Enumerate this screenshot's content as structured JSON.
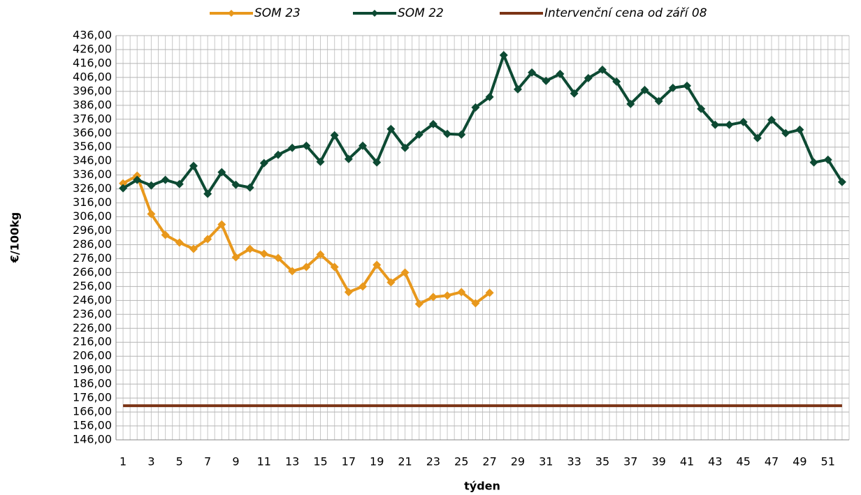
{
  "chart_data": {
    "type": "line",
    "xlabel": "týden",
    "ylabel": "€/100kg",
    "categories": [
      "1",
      null,
      "3",
      null,
      "5",
      null,
      "7",
      null,
      "9",
      null,
      "11",
      null,
      "13",
      null,
      "15",
      null,
      "17",
      null,
      "19",
      null,
      "21",
      null,
      "23",
      null,
      "25",
      null,
      "27",
      null,
      "29",
      null,
      "31",
      null,
      "33",
      null,
      "35",
      null,
      "37",
      null,
      "39",
      null,
      "41",
      null,
      "43",
      null,
      "45",
      null,
      "47",
      null,
      "49",
      null,
      "51",
      null
    ],
    "series": [
      {
        "name": "SOM 23",
        "color": "#e8981c",
        "marker": true,
        "values": [
          330,
          335.5,
          308,
          293,
          287.5,
          283,
          290,
          300.5,
          277,
          283,
          279.5,
          276.5,
          267,
          270,
          279,
          270,
          252,
          256,
          271.5,
          259,
          266,
          243.5,
          248.5,
          249.5,
          252,
          244,
          251.5,
          null,
          null,
          null,
          null,
          null,
          null,
          null,
          null,
          null,
          null,
          null,
          null,
          null,
          null,
          null,
          null,
          null,
          null,
          null,
          null,
          null,
          null,
          null,
          null,
          null
        ]
      },
      {
        "name": "SOM 22",
        "color": "#0d4a33",
        "marker": true,
        "values": [
          326.5,
          332.5,
          328.5,
          332.5,
          329.5,
          342.5,
          322.5,
          338,
          329,
          327,
          344.5,
          350.5,
          355.5,
          357,
          345.5,
          364.5,
          347.5,
          357,
          345,
          369,
          355.5,
          365,
          372.5,
          365.5,
          365,
          384.5,
          392,
          422,
          397.5,
          409.5,
          403.5,
          408.5,
          394.5,
          405.5,
          411.5,
          403,
          387,
          397,
          389,
          398.5,
          400,
          383.5,
          372,
          372,
          374,
          362.5,
          375.5,
          366,
          368.5,
          345,
          347,
          331
        ]
      },
      {
        "name": "Intervenční cena od září 08",
        "color": "#7b3416",
        "marker": false,
        "values": [
          170.5,
          170.5,
          170.5,
          170.5,
          170.5,
          170.5,
          170.5,
          170.5,
          170.5,
          170.5,
          170.5,
          170.5,
          170.5,
          170.5,
          170.5,
          170.5,
          170.5,
          170.5,
          170.5,
          170.5,
          170.5,
          170.5,
          170.5,
          170.5,
          170.5,
          170.5,
          170.5,
          170.5,
          170.5,
          170.5,
          170.5,
          170.5,
          170.5,
          170.5,
          170.5,
          170.5,
          170.5,
          170.5,
          170.5,
          170.5,
          170.5,
          170.5,
          170.5,
          170.5,
          170.5,
          170.5,
          170.5,
          170.5,
          170.5,
          170.5,
          170.5,
          170.5
        ]
      }
    ],
    "ylim": [
      146,
      436
    ],
    "yticks": [
      {
        "value": 146,
        "label": "146,00"
      },
      {
        "value": 156,
        "label": "156,00"
      },
      {
        "value": 166,
        "label": "166,00"
      },
      {
        "value": 176,
        "label": "176,00"
      },
      {
        "value": 186,
        "label": "186,00"
      },
      {
        "value": 196,
        "label": "196,00"
      },
      {
        "value": 206,
        "label": "206,00"
      },
      {
        "value": 216,
        "label": "216,00"
      },
      {
        "value": 226,
        "label": "226,00"
      },
      {
        "value": 236,
        "label": "236,00"
      },
      {
        "value": 246,
        "label": "246,00"
      },
      {
        "value": 256,
        "label": "256,00"
      },
      {
        "value": 266,
        "label": "266,00"
      },
      {
        "value": 276,
        "label": "276,00"
      },
      {
        "value": 286,
        "label": "286,00"
      },
      {
        "value": 296,
        "label": "296,00"
      },
      {
        "value": 306,
        "label": "306,00"
      },
      {
        "value": 316,
        "label": "316,00"
      },
      {
        "value": 326,
        "label": "326,00"
      },
      {
        "value": 336,
        "label": "336,00"
      },
      {
        "value": 346,
        "label": "346,00"
      },
      {
        "value": 356,
        "label": "356,00"
      },
      {
        "value": 366,
        "label": "366,00"
      },
      {
        "value": 376,
        "label": "376,00"
      },
      {
        "value": 386,
        "label": "386,00"
      },
      {
        "value": 396,
        "label": "396,00"
      },
      {
        "value": 406,
        "label": "406,00"
      },
      {
        "value": 416,
        "label": "416,00"
      },
      {
        "value": 426,
        "label": "426,00"
      },
      {
        "value": 436,
        "label": "436,00"
      }
    ],
    "grid": true,
    "legend": "top"
  }
}
